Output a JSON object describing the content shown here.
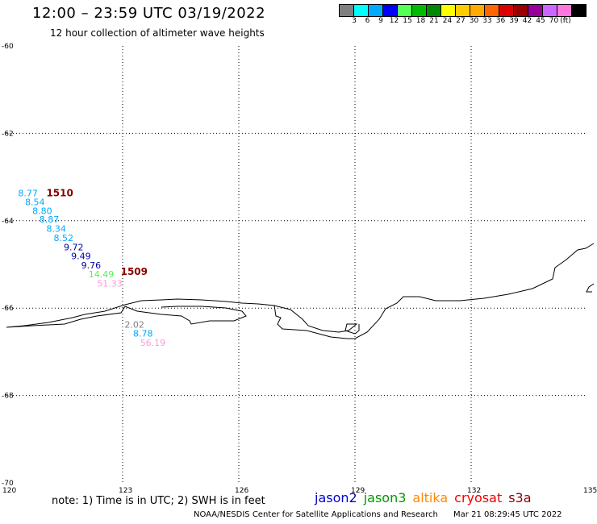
{
  "header": {
    "title": "12:00 – 23:59 UTC 03/19/2022",
    "subtitle": "12 hour collection of altimeter wave heights"
  },
  "color_scale": {
    "labels": [
      "3",
      "6",
      "9",
      "12",
      "15",
      "18",
      "21",
      "24",
      "27",
      "30",
      "33",
      "36",
      "39",
      "42",
      "45",
      "70"
    ],
    "unit": "(ft)",
    "colors": [
      "#808080",
      "#00ffff",
      "#00aaff",
      "#0000ff",
      "#55ff55",
      "#00bb00",
      "#008800",
      "#ffff00",
      "#ffcc00",
      "#ffaa00",
      "#ff6600",
      "#dd0000",
      "#990000",
      "#990099",
      "#cc66ff",
      "#ff77dd",
      "#000000"
    ]
  },
  "axes": {
    "x_ticks": [
      "120",
      "123",
      "126",
      "129",
      "132",
      "135"
    ],
    "y_ticks": [
      "-60",
      "-62",
      "-64",
      "-66",
      "-68",
      "-70"
    ],
    "x_range": [
      120,
      135
    ],
    "y_range": [
      -70,
      -60
    ]
  },
  "observations": [
    {
      "text": "8.77",
      "lon": 120.3,
      "lat": -63.37,
      "color": "#00aaff"
    },
    {
      "text": "8.54",
      "lon": 120.48,
      "lat": -63.57,
      "color": "#00aaff"
    },
    {
      "text": "8.80",
      "lon": 120.67,
      "lat": -63.77,
      "color": "#00aaff"
    },
    {
      "text": "8.87",
      "lon": 120.85,
      "lat": -63.97,
      "color": "#00aaff"
    },
    {
      "text": "8.34",
      "lon": 121.03,
      "lat": -64.18,
      "color": "#00aaff"
    },
    {
      "text": "8.52",
      "lon": 121.22,
      "lat": -64.39,
      "color": "#00aaff"
    },
    {
      "text": "9.72",
      "lon": 121.48,
      "lat": -64.6,
      "color": "#0000aa"
    },
    {
      "text": "9.49",
      "lon": 121.67,
      "lat": -64.81,
      "color": "#0000aa"
    },
    {
      "text": "9.76",
      "lon": 121.93,
      "lat": -65.02,
      "color": "#0000aa"
    },
    {
      "text": "14.49",
      "lon": 122.12,
      "lat": -65.22,
      "color": "#55ee55"
    },
    {
      "text": "51.33",
      "lon": 122.34,
      "lat": -65.43,
      "color": "#ff99dd"
    },
    {
      "text": "2.02",
      "lon": 123.05,
      "lat": -66.37,
      "color": "#808080"
    },
    {
      "text": "8.78",
      "lon": 123.27,
      "lat": -66.58,
      "color": "#00aaff"
    },
    {
      "text": "56.19",
      "lon": 123.45,
      "lat": -66.79,
      "color": "#ff99dd"
    }
  ],
  "cycles": [
    {
      "text": "1510",
      "lon": 121.03,
      "lat": -63.37,
      "color": "#880000"
    },
    {
      "text": "1509",
      "lon": 122.95,
      "lat": -65.17,
      "color": "#880000"
    }
  ],
  "note": "note: 1) Time is in UTC; 2) SWH is in feet",
  "legend": [
    {
      "label": "jason2",
      "color": "#0000cc"
    },
    {
      "label": "jason3",
      "color": "#009900"
    },
    {
      "label": "altika",
      "color": "#ff8800"
    },
    {
      "label": "cryosat",
      "color": "#ee0000"
    },
    {
      "label": "s3a",
      "color": "#880000"
    }
  ],
  "footer": {
    "credit": "NOAA/NESDIS Center for Satellite Applications and Research",
    "timestamp": "Mar 21 08:29:45 UTC 2022"
  }
}
